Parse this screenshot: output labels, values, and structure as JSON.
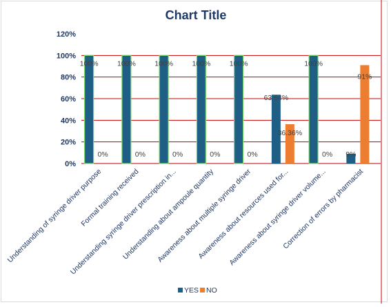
{
  "chart_data": {
    "type": "bar",
    "title": "Chart Title",
    "xlabel": "",
    "ylabel": "",
    "ylim": [
      0,
      1.2
    ],
    "y_tick_labels": [
      "0%",
      "20%",
      "40%",
      "60%",
      "80%",
      "100%",
      "120%"
    ],
    "grid": true,
    "legend_position": "bottom",
    "categories": [
      "Understanding of syringe driver purpose",
      "Formal training received",
      "Understanding syringe driver prescription in...",
      "Understanding  about ampoule quantity",
      "Awareness about multiple syringe driver",
      "Awareness about resources used for...",
      "Awareness about syringe driver volume...",
      "Correction of errors by pharmacist"
    ],
    "series": [
      {
        "name": "YES",
        "color": "#1f5f86",
        "values": [
          1.0,
          1.0,
          1.0,
          1.0,
          1.0,
          0.6364,
          1.0,
          0.09
        ],
        "labels": [
          "100%",
          "100%",
          "100%",
          "100%",
          "100%",
          "63.64%",
          "100%",
          "9%"
        ]
      },
      {
        "name": "NO",
        "color": "#ed7d31",
        "values": [
          0,
          0,
          0,
          0,
          0,
          0.3636,
          0,
          0.91
        ],
        "labels": [
          "0%",
          "0%",
          "0%",
          "0%",
          "0%",
          "36.36%",
          "0%",
          "91%"
        ]
      }
    ]
  }
}
